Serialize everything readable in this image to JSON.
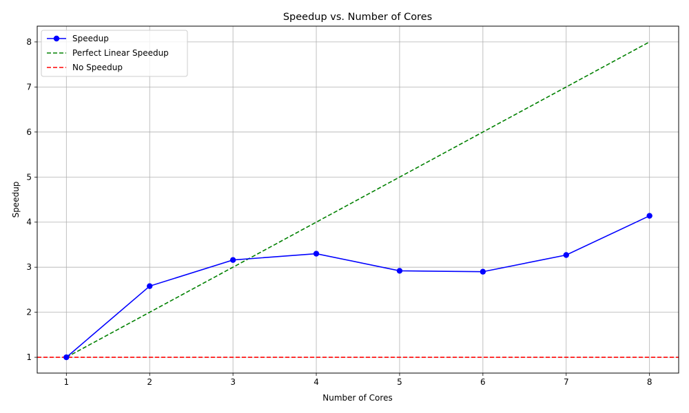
{
  "chart_data": {
    "type": "line",
    "title": "Speedup vs. Number of Cores",
    "xlabel": "Number of Cores",
    "ylabel": "Speedup",
    "xlim": [
      0.65,
      8.35
    ],
    "ylim": [
      0.65,
      8.35
    ],
    "xticks": [
      "1",
      "2",
      "3",
      "4",
      "5",
      "6",
      "7",
      "8"
    ],
    "yticks": [
      "1",
      "2",
      "3",
      "4",
      "5",
      "6",
      "7",
      "8"
    ],
    "grid": true,
    "legend_position": "upper-left",
    "x": [
      1,
      2,
      3,
      4,
      5,
      6,
      7,
      8
    ],
    "series": [
      {
        "name": "Speedup",
        "values": [
          1.0,
          2.58,
          3.16,
          3.3,
          2.92,
          2.9,
          3.27,
          4.14
        ],
        "color": "#0000ff",
        "style": "solid",
        "marker": "circle"
      },
      {
        "name": "Perfect Linear Speedup",
        "values": [
          1,
          2,
          3,
          4,
          5,
          6,
          7,
          8
        ],
        "color": "#008000",
        "style": "dashed",
        "marker": "none"
      },
      {
        "name": "No Speedup",
        "hline": 1,
        "color": "#ff0000",
        "style": "dashed",
        "marker": "none"
      }
    ]
  }
}
